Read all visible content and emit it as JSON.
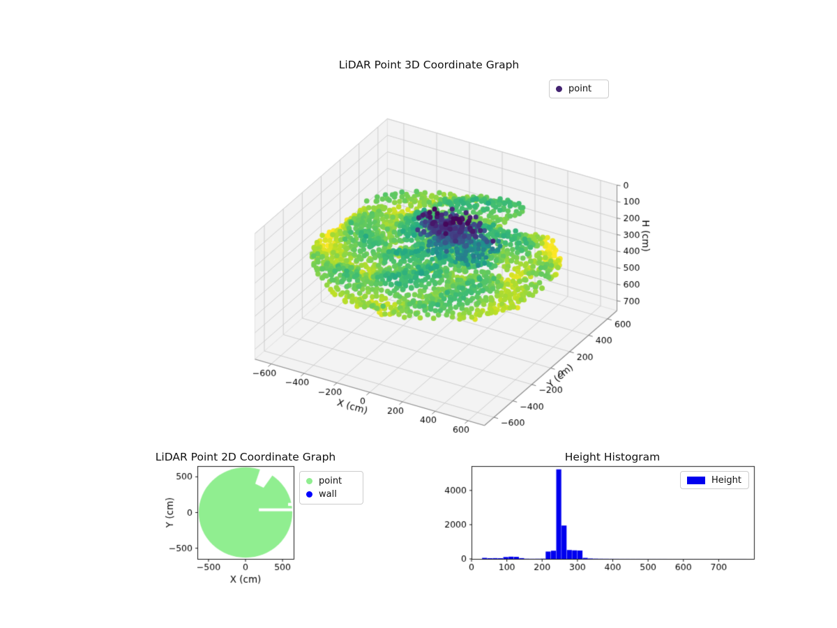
{
  "figure": {
    "background": "#ffffff"
  },
  "chart_data": [
    {
      "id": "scatter3d",
      "type": "scatter",
      "title": "LiDAR Point 3D Coordinate Graph",
      "xlabel": "X (cm)",
      "ylabel": "Y (cm)",
      "zlabel": "H (cm)",
      "xlim": [
        -700,
        700
      ],
      "ylim": [
        -700,
        700
      ],
      "hlim": [
        0,
        760
      ],
      "xticks": {
        "values": [
          -600,
          -400,
          -200,
          0,
          200,
          400,
          600
        ],
        "labels": [
          "−600",
          "−400",
          "−200",
          "0",
          "200",
          "400",
          "600"
        ]
      },
      "yticks": {
        "values": [
          -600,
          -400,
          -200,
          0,
          200,
          400,
          600
        ],
        "labels": [
          "−600",
          "−400",
          "−200",
          "0",
          "200",
          "400",
          "600"
        ]
      },
      "hticks": {
        "values": [
          0,
          100,
          200,
          300,
          400,
          500,
          600,
          700
        ],
        "labels": [
          "0",
          "100",
          "200",
          "300",
          "400",
          "500",
          "600",
          "700"
        ]
      },
      "legend": [
        {
          "label": "point",
          "color": "#432371"
        }
      ],
      "colormap": "viridis",
      "color_by": "height",
      "color_range": [
        40,
        330
      ],
      "cloud": {
        "seed": 7,
        "rings": {
          "count": 24,
          "r_min": 80,
          "r_max": 650,
          "base_points": 36,
          "points_per_ring_step": 4
        },
        "height": {
          "base": 243,
          "rim_gain": 58,
          "wave_amp": 22,
          "noise": 9,
          "patch_boost": 26
        },
        "cluster": {
          "n": 260,
          "cx": 90,
          "cy": 10,
          "sx": 80,
          "sy": 60,
          "h_mean": 110,
          "h_sd": 32,
          "h_min": 45,
          "h_max": 185
        },
        "mid": {
          "n": 160,
          "x0": 0,
          "x1": 340,
          "y0": -140,
          "y1": 140,
          "h_mean": 185,
          "h_sd": 22
        },
        "notch_wedge": {
          "a0": 55,
          "a1": 72,
          "r0": 430
        },
        "notch_slit": {
          "x0": 180,
          "y0": 18,
          "y1": 58
        },
        "marker_radius": 3.8
      }
    },
    {
      "id": "scatter2d",
      "type": "scatter",
      "title": "LiDAR Point 2D Coordinate Graph",
      "xlabel": "X (cm)",
      "ylabel": "Y (cm)",
      "xlim": [
        -650,
        650
      ],
      "ylim": [
        -650,
        650
      ],
      "xticks": {
        "values": [
          -500,
          0,
          500
        ],
        "labels": [
          "−500",
          "0",
          "500"
        ]
      },
      "yticks": {
        "values": [
          -500,
          0,
          500
        ],
        "labels": [
          "−500",
          "0",
          "500"
        ]
      },
      "legend": [
        {
          "label": "point",
          "color": "#90ee90"
        },
        {
          "label": "wall",
          "color": "#0000ff"
        }
      ],
      "disk": {
        "radius": 632,
        "color": "#90ee90",
        "center": [
          0,
          0
        ]
      },
      "notches": {
        "wedge": {
          "a0": 55,
          "a1": 72,
          "r0": 425,
          "r1": 700
        },
        "slit": {
          "x0": 180,
          "x1": 700,
          "y0": 18,
          "y1": 58
        },
        "nick": {
          "x0": 575,
          "x1": 700,
          "y0": 92,
          "y1": 135
        }
      }
    },
    {
      "id": "histogram",
      "type": "bar",
      "title": "Height Histogram",
      "legend": [
        {
          "label": "Height",
          "color": "#0000ee"
        }
      ],
      "bar_color": "#0000ee",
      "xlim": [
        0,
        800
      ],
      "ylim": [
        0,
        5420
      ],
      "xticks": {
        "values": [
          0,
          100,
          200,
          300,
          400,
          500,
          600,
          700
        ],
        "labels": [
          "0",
          "100",
          "200",
          "300",
          "400",
          "500",
          "600",
          "700"
        ]
      },
      "yticks": {
        "values": [
          0,
          2000,
          4000
        ],
        "labels": [
          "0",
          "2000",
          "4000"
        ]
      },
      "bins": {
        "start": 30,
        "width": 15,
        "counts": [
          60,
          40,
          45,
          40,
          110,
          130,
          120,
          45,
          12,
          8,
          10,
          14,
          430,
          480,
          5230,
          1950,
          520,
          500,
          490,
          60,
          25,
          15,
          10,
          8,
          6,
          5,
          4,
          4,
          3,
          3,
          2,
          2,
          2,
          2,
          2,
          1,
          1,
          1,
          1,
          1,
          1,
          1,
          1,
          1,
          1,
          1,
          1,
          1,
          1,
          1
        ]
      }
    }
  ]
}
